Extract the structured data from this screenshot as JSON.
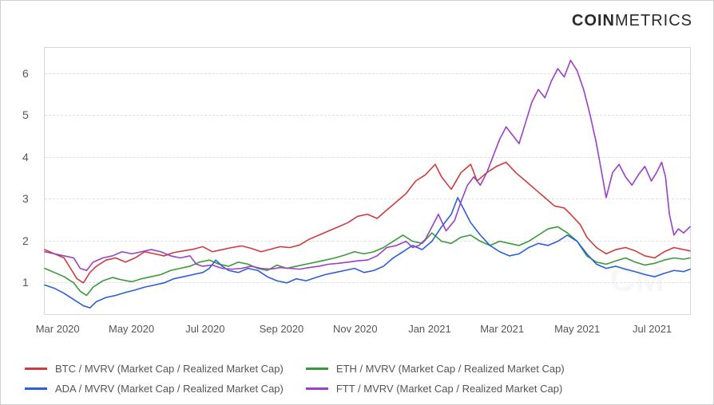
{
  "brand": {
    "bold": "COIN",
    "light": "METRICS"
  },
  "watermark": "CM",
  "chart": {
    "type": "line",
    "background_color": "#ffffff",
    "border_color": "#d0d0d0",
    "grid_color": "#e0e0e0",
    "tick_color": "#555555",
    "tick_fontsize": 13,
    "yaxis": {
      "min": 0.2,
      "max": 6.6,
      "ticks": [
        1,
        2,
        3,
        4,
        5,
        6
      ]
    },
    "xaxis": {
      "labels": [
        "Mar 2020",
        "May 2020",
        "Jul 2020",
        "Sep 2020",
        "Nov 2020",
        "Jan 2021",
        "Mar 2021",
        "May 2021",
        "Jul 2021"
      ],
      "positions": [
        0.02,
        0.134,
        0.248,
        0.366,
        0.48,
        0.595,
        0.707,
        0.823,
        0.939
      ]
    },
    "series": [
      {
        "id": "btc",
        "label": "BTC / MVRV (Market Cap / Realized Market Cap)",
        "color": "#d03b3b",
        "width": 1.6,
        "data": [
          [
            0.0,
            1.75
          ],
          [
            0.015,
            1.65
          ],
          [
            0.03,
            1.55
          ],
          [
            0.04,
            1.3
          ],
          [
            0.05,
            1.05
          ],
          [
            0.06,
            0.95
          ],
          [
            0.07,
            1.2
          ],
          [
            0.08,
            1.35
          ],
          [
            0.095,
            1.5
          ],
          [
            0.11,
            1.55
          ],
          [
            0.125,
            1.45
          ],
          [
            0.14,
            1.55
          ],
          [
            0.155,
            1.7
          ],
          [
            0.17,
            1.65
          ],
          [
            0.185,
            1.6
          ],
          [
            0.2,
            1.68
          ],
          [
            0.215,
            1.72
          ],
          [
            0.23,
            1.76
          ],
          [
            0.245,
            1.82
          ],
          [
            0.26,
            1.7
          ],
          [
            0.275,
            1.75
          ],
          [
            0.29,
            1.8
          ],
          [
            0.305,
            1.84
          ],
          [
            0.32,
            1.78
          ],
          [
            0.335,
            1.7
          ],
          [
            0.35,
            1.76
          ],
          [
            0.365,
            1.82
          ],
          [
            0.38,
            1.8
          ],
          [
            0.395,
            1.86
          ],
          [
            0.41,
            2.0
          ],
          [
            0.425,
            2.1
          ],
          [
            0.44,
            2.2
          ],
          [
            0.455,
            2.3
          ],
          [
            0.47,
            2.4
          ],
          [
            0.485,
            2.55
          ],
          [
            0.5,
            2.6
          ],
          [
            0.515,
            2.5
          ],
          [
            0.53,
            2.7
          ],
          [
            0.545,
            2.9
          ],
          [
            0.56,
            3.1
          ],
          [
            0.575,
            3.4
          ],
          [
            0.59,
            3.55
          ],
          [
            0.605,
            3.8
          ],
          [
            0.615,
            3.5
          ],
          [
            0.63,
            3.2
          ],
          [
            0.645,
            3.6
          ],
          [
            0.66,
            3.8
          ],
          [
            0.67,
            3.4
          ],
          [
            0.685,
            3.6
          ],
          [
            0.7,
            3.75
          ],
          [
            0.715,
            3.85
          ],
          [
            0.73,
            3.6
          ],
          [
            0.745,
            3.4
          ],
          [
            0.76,
            3.2
          ],
          [
            0.775,
            3.0
          ],
          [
            0.79,
            2.8
          ],
          [
            0.805,
            2.75
          ],
          [
            0.815,
            2.6
          ],
          [
            0.83,
            2.35
          ],
          [
            0.84,
            2.05
          ],
          [
            0.855,
            1.8
          ],
          [
            0.87,
            1.65
          ],
          [
            0.885,
            1.75
          ],
          [
            0.9,
            1.8
          ],
          [
            0.915,
            1.72
          ],
          [
            0.93,
            1.6
          ],
          [
            0.945,
            1.55
          ],
          [
            0.96,
            1.7
          ],
          [
            0.975,
            1.8
          ],
          [
            0.99,
            1.75
          ],
          [
            1.0,
            1.72
          ]
        ]
      },
      {
        "id": "eth",
        "label": "ETH / MVRV (Market Cap / Realized Market Cap)",
        "color": "#3a9a3a",
        "width": 1.6,
        "data": [
          [
            0.0,
            1.3
          ],
          [
            0.015,
            1.2
          ],
          [
            0.03,
            1.1
          ],
          [
            0.045,
            0.95
          ],
          [
            0.055,
            0.75
          ],
          [
            0.065,
            0.65
          ],
          [
            0.075,
            0.85
          ],
          [
            0.09,
            1.0
          ],
          [
            0.105,
            1.08
          ],
          [
            0.12,
            1.02
          ],
          [
            0.135,
            0.98
          ],
          [
            0.15,
            1.05
          ],
          [
            0.165,
            1.1
          ],
          [
            0.18,
            1.15
          ],
          [
            0.195,
            1.25
          ],
          [
            0.21,
            1.3
          ],
          [
            0.225,
            1.35
          ],
          [
            0.24,
            1.45
          ],
          [
            0.255,
            1.5
          ],
          [
            0.27,
            1.4
          ],
          [
            0.285,
            1.35
          ],
          [
            0.3,
            1.45
          ],
          [
            0.315,
            1.4
          ],
          [
            0.33,
            1.3
          ],
          [
            0.345,
            1.25
          ],
          [
            0.36,
            1.38
          ],
          [
            0.375,
            1.3
          ],
          [
            0.39,
            1.35
          ],
          [
            0.405,
            1.4
          ],
          [
            0.42,
            1.45
          ],
          [
            0.435,
            1.5
          ],
          [
            0.45,
            1.55
          ],
          [
            0.465,
            1.62
          ],
          [
            0.48,
            1.7
          ],
          [
            0.495,
            1.65
          ],
          [
            0.51,
            1.7
          ],
          [
            0.525,
            1.8
          ],
          [
            0.54,
            1.95
          ],
          [
            0.555,
            2.1
          ],
          [
            0.57,
            1.95
          ],
          [
            0.585,
            1.9
          ],
          [
            0.6,
            2.15
          ],
          [
            0.615,
            1.95
          ],
          [
            0.63,
            1.9
          ],
          [
            0.645,
            2.05
          ],
          [
            0.66,
            2.1
          ],
          [
            0.675,
            1.95
          ],
          [
            0.69,
            1.85
          ],
          [
            0.705,
            1.95
          ],
          [
            0.72,
            1.9
          ],
          [
            0.735,
            1.85
          ],
          [
            0.75,
            1.95
          ],
          [
            0.765,
            2.1
          ],
          [
            0.78,
            2.25
          ],
          [
            0.795,
            2.3
          ],
          [
            0.81,
            2.15
          ],
          [
            0.825,
            1.95
          ],
          [
            0.84,
            1.6
          ],
          [
            0.855,
            1.45
          ],
          [
            0.87,
            1.4
          ],
          [
            0.885,
            1.48
          ],
          [
            0.9,
            1.55
          ],
          [
            0.915,
            1.45
          ],
          [
            0.93,
            1.38
          ],
          [
            0.945,
            1.42
          ],
          [
            0.96,
            1.5
          ],
          [
            0.975,
            1.55
          ],
          [
            0.99,
            1.52
          ],
          [
            1.0,
            1.55
          ]
        ]
      },
      {
        "id": "ada",
        "label": "ADA / MVRV (Market Cap / Realized Market Cap)",
        "color": "#2a5fd8",
        "width": 1.6,
        "data": [
          [
            0.0,
            0.9
          ],
          [
            0.015,
            0.82
          ],
          [
            0.03,
            0.7
          ],
          [
            0.045,
            0.55
          ],
          [
            0.06,
            0.4
          ],
          [
            0.07,
            0.35
          ],
          [
            0.08,
            0.5
          ],
          [
            0.095,
            0.6
          ],
          [
            0.11,
            0.65
          ],
          [
            0.125,
            0.72
          ],
          [
            0.14,
            0.78
          ],
          [
            0.155,
            0.85
          ],
          [
            0.17,
            0.9
          ],
          [
            0.185,
            0.95
          ],
          [
            0.2,
            1.05
          ],
          [
            0.215,
            1.1
          ],
          [
            0.23,
            1.15
          ],
          [
            0.245,
            1.2
          ],
          [
            0.255,
            1.3
          ],
          [
            0.265,
            1.5
          ],
          [
            0.275,
            1.35
          ],
          [
            0.285,
            1.25
          ],
          [
            0.3,
            1.2
          ],
          [
            0.315,
            1.3
          ],
          [
            0.33,
            1.25
          ],
          [
            0.345,
            1.1
          ],
          [
            0.36,
            1.0
          ],
          [
            0.375,
            0.95
          ],
          [
            0.39,
            1.05
          ],
          [
            0.405,
            1.0
          ],
          [
            0.42,
            1.08
          ],
          [
            0.435,
            1.15
          ],
          [
            0.45,
            1.2
          ],
          [
            0.465,
            1.25
          ],
          [
            0.48,
            1.3
          ],
          [
            0.495,
            1.2
          ],
          [
            0.51,
            1.25
          ],
          [
            0.525,
            1.35
          ],
          [
            0.54,
            1.55
          ],
          [
            0.555,
            1.7
          ],
          [
            0.57,
            1.85
          ],
          [
            0.585,
            1.75
          ],
          [
            0.6,
            1.95
          ],
          [
            0.615,
            2.3
          ],
          [
            0.63,
            2.6
          ],
          [
            0.64,
            3.0
          ],
          [
            0.65,
            2.7
          ],
          [
            0.66,
            2.4
          ],
          [
            0.675,
            2.1
          ],
          [
            0.69,
            1.85
          ],
          [
            0.705,
            1.7
          ],
          [
            0.72,
            1.6
          ],
          [
            0.735,
            1.65
          ],
          [
            0.75,
            1.8
          ],
          [
            0.765,
            1.9
          ],
          [
            0.78,
            1.85
          ],
          [
            0.795,
            1.95
          ],
          [
            0.81,
            2.1
          ],
          [
            0.825,
            1.95
          ],
          [
            0.84,
            1.65
          ],
          [
            0.855,
            1.4
          ],
          [
            0.87,
            1.3
          ],
          [
            0.885,
            1.35
          ],
          [
            0.9,
            1.28
          ],
          [
            0.915,
            1.22
          ],
          [
            0.93,
            1.15
          ],
          [
            0.945,
            1.1
          ],
          [
            0.96,
            1.18
          ],
          [
            0.975,
            1.25
          ],
          [
            0.99,
            1.22
          ],
          [
            1.0,
            1.28
          ]
        ]
      },
      {
        "id": "ftt",
        "label": "FTT / MVRV (Market Cap / Realized Market Cap)",
        "color": "#9b3fc4",
        "width": 1.6,
        "data": [
          [
            0.0,
            1.7
          ],
          [
            0.015,
            1.65
          ],
          [
            0.03,
            1.6
          ],
          [
            0.045,
            1.55
          ],
          [
            0.055,
            1.3
          ],
          [
            0.065,
            1.25
          ],
          [
            0.075,
            1.45
          ],
          [
            0.09,
            1.55
          ],
          [
            0.105,
            1.6
          ],
          [
            0.12,
            1.7
          ],
          [
            0.135,
            1.65
          ],
          [
            0.15,
            1.7
          ],
          [
            0.165,
            1.75
          ],
          [
            0.18,
            1.7
          ],
          [
            0.195,
            1.6
          ],
          [
            0.21,
            1.55
          ],
          [
            0.225,
            1.6
          ],
          [
            0.235,
            1.4
          ],
          [
            0.245,
            1.35
          ],
          [
            0.26,
            1.38
          ],
          [
            0.275,
            1.3
          ],
          [
            0.29,
            1.28
          ],
          [
            0.305,
            1.3
          ],
          [
            0.32,
            1.35
          ],
          [
            0.335,
            1.3
          ],
          [
            0.35,
            1.28
          ],
          [
            0.365,
            1.32
          ],
          [
            0.38,
            1.3
          ],
          [
            0.395,
            1.28
          ],
          [
            0.41,
            1.32
          ],
          [
            0.425,
            1.35
          ],
          [
            0.44,
            1.4
          ],
          [
            0.455,
            1.42
          ],
          [
            0.47,
            1.45
          ],
          [
            0.485,
            1.48
          ],
          [
            0.5,
            1.5
          ],
          [
            0.515,
            1.6
          ],
          [
            0.53,
            1.8
          ],
          [
            0.545,
            1.85
          ],
          [
            0.56,
            1.95
          ],
          [
            0.57,
            1.8
          ],
          [
            0.58,
            1.85
          ],
          [
            0.59,
            2.0
          ],
          [
            0.6,
            2.3
          ],
          [
            0.61,
            2.6
          ],
          [
            0.622,
            2.2
          ],
          [
            0.635,
            2.45
          ],
          [
            0.645,
            2.9
          ],
          [
            0.655,
            3.3
          ],
          [
            0.665,
            3.5
          ],
          [
            0.675,
            3.3
          ],
          [
            0.685,
            3.6
          ],
          [
            0.695,
            4.0
          ],
          [
            0.705,
            4.4
          ],
          [
            0.715,
            4.7
          ],
          [
            0.725,
            4.5
          ],
          [
            0.735,
            4.3
          ],
          [
            0.745,
            4.8
          ],
          [
            0.755,
            5.3
          ],
          [
            0.765,
            5.6
          ],
          [
            0.775,
            5.4
          ],
          [
            0.785,
            5.8
          ],
          [
            0.795,
            6.1
          ],
          [
            0.805,
            5.9
          ],
          [
            0.815,
            6.3
          ],
          [
            0.825,
            6.05
          ],
          [
            0.835,
            5.6
          ],
          [
            0.845,
            5.0
          ],
          [
            0.855,
            4.3
          ],
          [
            0.862,
            3.7
          ],
          [
            0.87,
            3.0
          ],
          [
            0.88,
            3.6
          ],
          [
            0.89,
            3.8
          ],
          [
            0.9,
            3.5
          ],
          [
            0.91,
            3.3
          ],
          [
            0.92,
            3.55
          ],
          [
            0.93,
            3.75
          ],
          [
            0.94,
            3.4
          ],
          [
            0.948,
            3.6
          ],
          [
            0.956,
            3.85
          ],
          [
            0.962,
            3.5
          ],
          [
            0.968,
            2.6
          ],
          [
            0.975,
            2.1
          ],
          [
            0.982,
            2.25
          ],
          [
            0.99,
            2.15
          ],
          [
            1.0,
            2.3
          ]
        ]
      }
    ],
    "legend": {
      "position": "bottom",
      "fontsize": 13,
      "text_color": "#555555"
    }
  }
}
